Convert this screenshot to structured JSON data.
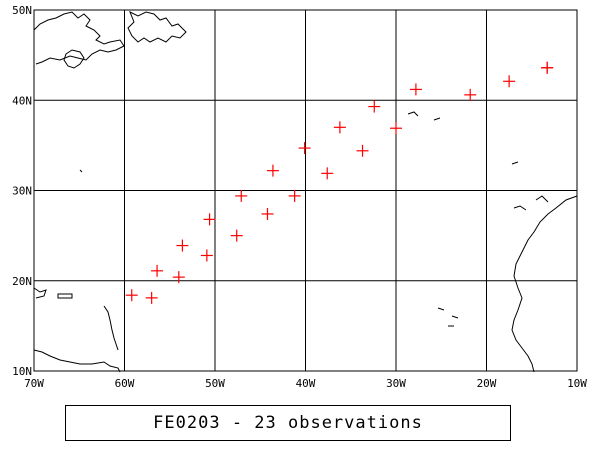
{
  "map": {
    "lon_range": [
      -70,
      -10
    ],
    "lat_range": [
      10,
      50
    ],
    "lon_ticks": [
      {
        "value": -70,
        "label": "70W"
      },
      {
        "value": -60,
        "label": "60W"
      },
      {
        "value": -50,
        "label": "50W"
      },
      {
        "value": -40,
        "label": "40W"
      },
      {
        "value": -30,
        "label": "30W"
      },
      {
        "value": -20,
        "label": "20W"
      },
      {
        "value": -10,
        "label": "10W"
      }
    ],
    "lat_ticks": [
      {
        "value": 10,
        "label": "10N"
      },
      {
        "value": 20,
        "label": "20N"
      },
      {
        "value": 30,
        "label": "30N"
      },
      {
        "value": 40,
        "label": "40N"
      },
      {
        "value": 50,
        "label": "50N"
      }
    ],
    "grid": true,
    "colors": {
      "marker": "#ff0000",
      "coast": "#000000",
      "grid": "#000000"
    },
    "marker_symbol": "plus",
    "observations": [
      {
        "lon": -59.2,
        "lat": 18.4
      },
      {
        "lon": -57.0,
        "lat": 18.1
      },
      {
        "lon": -56.4,
        "lat": 21.1
      },
      {
        "lon": -54.0,
        "lat": 20.4
      },
      {
        "lon": -53.6,
        "lat": 23.9
      },
      {
        "lon": -50.9,
        "lat": 22.8
      },
      {
        "lon": -50.6,
        "lat": 26.8
      },
      {
        "lon": -47.6,
        "lat": 25.0
      },
      {
        "lon": -47.1,
        "lat": 29.4
      },
      {
        "lon": -44.2,
        "lat": 27.4
      },
      {
        "lon": -43.6,
        "lat": 32.2
      },
      {
        "lon": -41.2,
        "lat": 29.4
      },
      {
        "lon": -40.1,
        "lat": 34.7
      },
      {
        "lon": -37.6,
        "lat": 31.9
      },
      {
        "lon": -36.2,
        "lat": 37.0
      },
      {
        "lon": -33.7,
        "lat": 34.4
      },
      {
        "lon": -32.4,
        "lat": 39.3
      },
      {
        "lon": -30.0,
        "lat": 36.9
      },
      {
        "lon": -27.8,
        "lat": 41.2
      },
      {
        "lon": -21.8,
        "lat": 40.6
      },
      {
        "lon": -17.5,
        "lat": 42.1
      },
      {
        "lon": -13.3,
        "lat": 43.6
      },
      {
        "lon": -13.3,
        "lat": 43.6
      }
    ]
  },
  "caption": "FE0203 - 23 observations"
}
